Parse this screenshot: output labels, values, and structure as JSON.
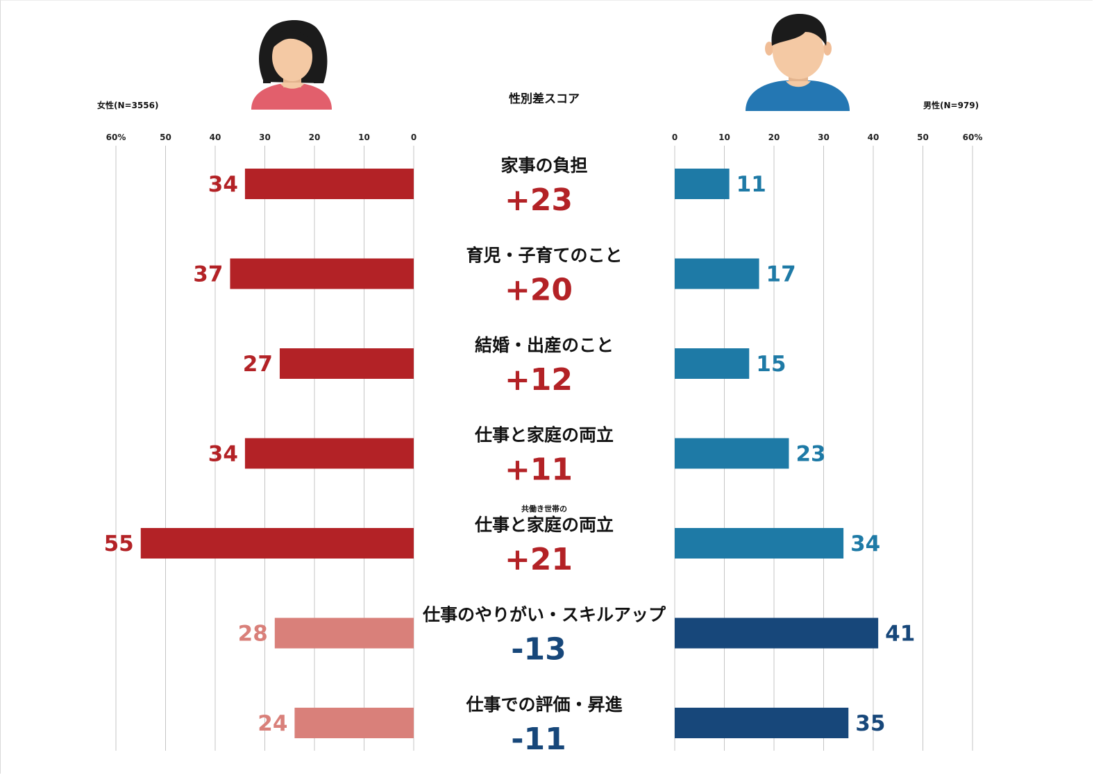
{
  "header": {
    "title": "性別差スコア",
    "female_label": "女性(N=3556)",
    "male_label": "男性(N=979)"
  },
  "axis": {
    "left_ticks": [
      "60%",
      "50",
      "40",
      "30",
      "20",
      "10",
      "0"
    ],
    "right_ticks": [
      "0",
      "10",
      "20",
      "30",
      "40",
      "50",
      "60%"
    ]
  },
  "colors": {
    "female_strong": "#b32226",
    "female_light": "#d9807a",
    "male_strong": "#1e7aa6",
    "male_dark": "#17477a",
    "diff_positive": "#b32226",
    "diff_negative": "#17477a",
    "female_shirt": "#e25f6c",
    "male_shirt": "#2477b3",
    "skin": "#f4c9a4",
    "hair": "#1b1b1b"
  },
  "icons": {
    "female": "woman-avatar-icon",
    "male": "man-avatar-icon"
  },
  "chart_data": {
    "type": "bar",
    "orientation": "horizontal-diverging",
    "xlim": [
      0,
      60
    ],
    "grid": true,
    "categories": [
      {
        "label": "家事の負担",
        "sublabel": "",
        "female": 34,
        "male": 11,
        "diff": "+23",
        "emphasis": "female"
      },
      {
        "label": "育児・子育てのこと",
        "sublabel": "",
        "female": 37,
        "male": 17,
        "diff": "+20",
        "emphasis": "female"
      },
      {
        "label": "結婚・出産のこと",
        "sublabel": "",
        "female": 27,
        "male": 15,
        "diff": "+12",
        "emphasis": "female"
      },
      {
        "label": "仕事と家庭の両立",
        "sublabel": "",
        "female": 34,
        "male": 23,
        "diff": "+11",
        "emphasis": "female"
      },
      {
        "label": "仕事と家庭の両立",
        "sublabel": "共働き世帯の",
        "female": 55,
        "male": 34,
        "diff": "+21",
        "emphasis": "female"
      },
      {
        "label": "仕事のやりがい・スキルアップ",
        "sublabel": "",
        "female": 28,
        "male": 41,
        "diff": "-13",
        "emphasis": "male"
      },
      {
        "label": "仕事での評価・昇進",
        "sublabel": "",
        "female": 24,
        "male": 35,
        "diff": "-11",
        "emphasis": "male"
      }
    ]
  }
}
